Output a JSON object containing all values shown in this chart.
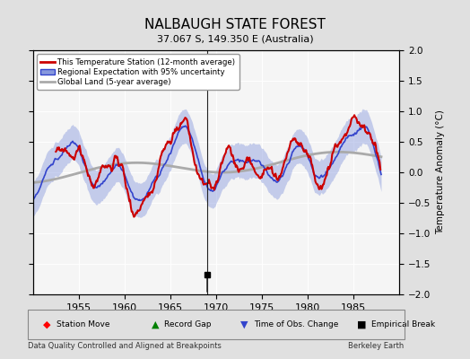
{
  "title": "NALBAUGH STATE FOREST",
  "subtitle": "37.067 S, 149.350 E (Australia)",
  "ylabel": "Temperature Anomaly (°C)",
  "footer_left": "Data Quality Controlled and Aligned at Breakpoints",
  "footer_right": "Berkeley Earth",
  "xlim": [
    1950,
    1990
  ],
  "ylim": [
    -2,
    2
  ],
  "yticks": [
    -2,
    -1.5,
    -1,
    -0.5,
    0,
    0.5,
    1,
    1.5,
    2
  ],
  "xticks": [
    1955,
    1960,
    1965,
    1970,
    1975,
    1980,
    1985
  ],
  "time_of_obs_change_year": 1969.0,
  "empirical_break_year": 1969.0,
  "bg_color": "#e0e0e0",
  "plot_bg_color": "#f5f5f5",
  "station_color": "#cc0000",
  "regional_color": "#3344cc",
  "regional_fill_color": "#8899dd",
  "global_color": "#aaaaaa",
  "legend_entries": [
    "This Temperature Station (12-month average)",
    "Regional Expectation with 95% uncertainty",
    "Global Land (5-year average)"
  ]
}
